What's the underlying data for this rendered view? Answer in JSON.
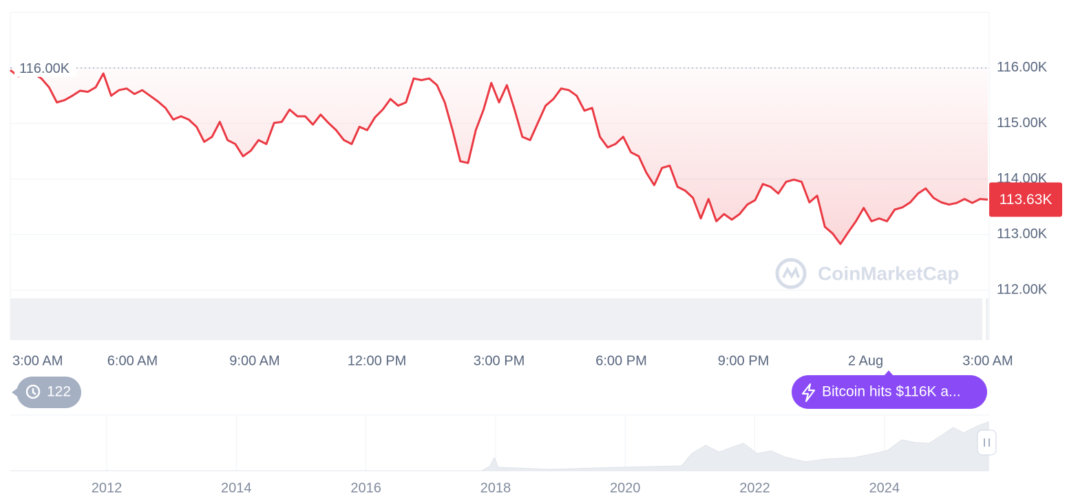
{
  "chart_data": {
    "type": "line",
    "color": "#ea3943",
    "x_tick_labels": [
      "3:00 AM",
      "6:00 AM",
      "9:00 AM",
      "12:00 PM",
      "3:00 PM",
      "6:00 PM",
      "9:00 PM",
      "2 Aug",
      "3:00 AM"
    ],
    "values": [
      115960,
      115850,
      115880,
      115900,
      115810,
      115650,
      115380,
      115420,
      115500,
      115590,
      115570,
      115650,
      115900,
      115500,
      115600,
      115630,
      115530,
      115600,
      115500,
      115400,
      115280,
      115070,
      115130,
      115070,
      114940,
      114670,
      114760,
      115030,
      114700,
      114630,
      114410,
      114510,
      114700,
      114630,
      115010,
      115030,
      115250,
      115130,
      115130,
      114980,
      115160,
      115010,
      114880,
      114700,
      114630,
      114940,
      114880,
      115110,
      115250,
      115440,
      115320,
      115380,
      115810,
      115780,
      115810,
      115690,
      115380,
      114880,
      114320,
      114290,
      114880,
      115250,
      115730,
      115380,
      115690,
      115250,
      114760,
      114700,
      115010,
      115320,
      115440,
      115630,
      115600,
      115500,
      115230,
      115280,
      114760,
      114570,
      114630,
      114760,
      114480,
      114410,
      114110,
      113890,
      114200,
      114240,
      113860,
      113790,
      113660,
      113290,
      113640,
      113240,
      113370,
      113270,
      113370,
      113540,
      113620,
      113910,
      113860,
      113740,
      113950,
      113990,
      113950,
      113580,
      113700,
      113140,
      113020,
      112830,
      113040,
      113240,
      113480,
      113240,
      113290,
      113240,
      113450,
      113490,
      113580,
      113740,
      113830,
      113660,
      113580,
      113540,
      113570,
      113640,
      113570,
      113640,
      113630
    ],
    "ylim": [
      111100,
      117000
    ],
    "yticks": [
      {
        "value": 112000,
        "label": "112.00K"
      },
      {
        "value": 113000,
        "label": "113.00K"
      },
      {
        "value": 114000,
        "label": "114.00K"
      },
      {
        "value": 115000,
        "label": "115.00K"
      },
      {
        "value": 116000,
        "label": "116.00K"
      }
    ],
    "reference": {
      "value": 116000,
      "label": "116.00K"
    },
    "last_price": {
      "value": 113630,
      "label": "113.63K"
    },
    "grid": true
  },
  "watermark": "CoinMarketCap",
  "history_badge": 122,
  "news_pill": "Bitcoin hits $116K a...",
  "navigator": {
    "year_labels": [
      "2012",
      "2014",
      "2016",
      "2018",
      "2020",
      "2022",
      "2024"
    ]
  }
}
